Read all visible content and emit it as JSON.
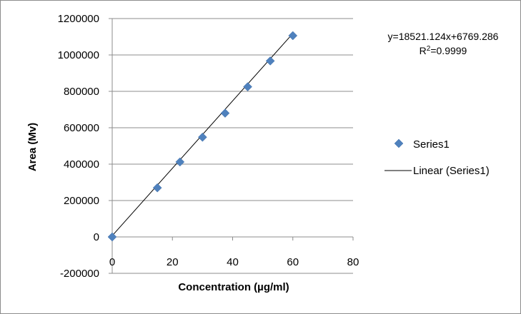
{
  "chart_data": {
    "type": "scatter",
    "xlabel": "Concentration (µg/ml)",
    "ylabel": "Area (Mv)",
    "xlim": [
      0,
      80
    ],
    "ylim": [
      -200000,
      1200000
    ],
    "x_ticks": [
      "0",
      "20",
      "40",
      "60",
      "80"
    ],
    "y_ticks": [
      "-200000",
      "0",
      "200000",
      "400000",
      "600000",
      "800000",
      "1000000",
      "1200000"
    ],
    "gridlines": "horizontal",
    "legend_position": "right",
    "series": [
      {
        "name": "Series1",
        "marker": "diamond",
        "color": "#4f81bd",
        "x": [
          0,
          15,
          22.5,
          30,
          37.5,
          45,
          52.5,
          60
        ],
        "y": [
          0,
          270000,
          412000,
          548000,
          680000,
          825000,
          967000,
          1106000
        ]
      }
    ],
    "trendline": {
      "name": "Linear (Series1)",
      "type": "linear",
      "slope": 18521.124,
      "intercept": 6769.286,
      "color": "#000000",
      "equation_text": "y=18521.124x+6769.286",
      "r2_label": "R",
      "r2_sup": "2",
      "r2_value": "=0.9999"
    }
  }
}
